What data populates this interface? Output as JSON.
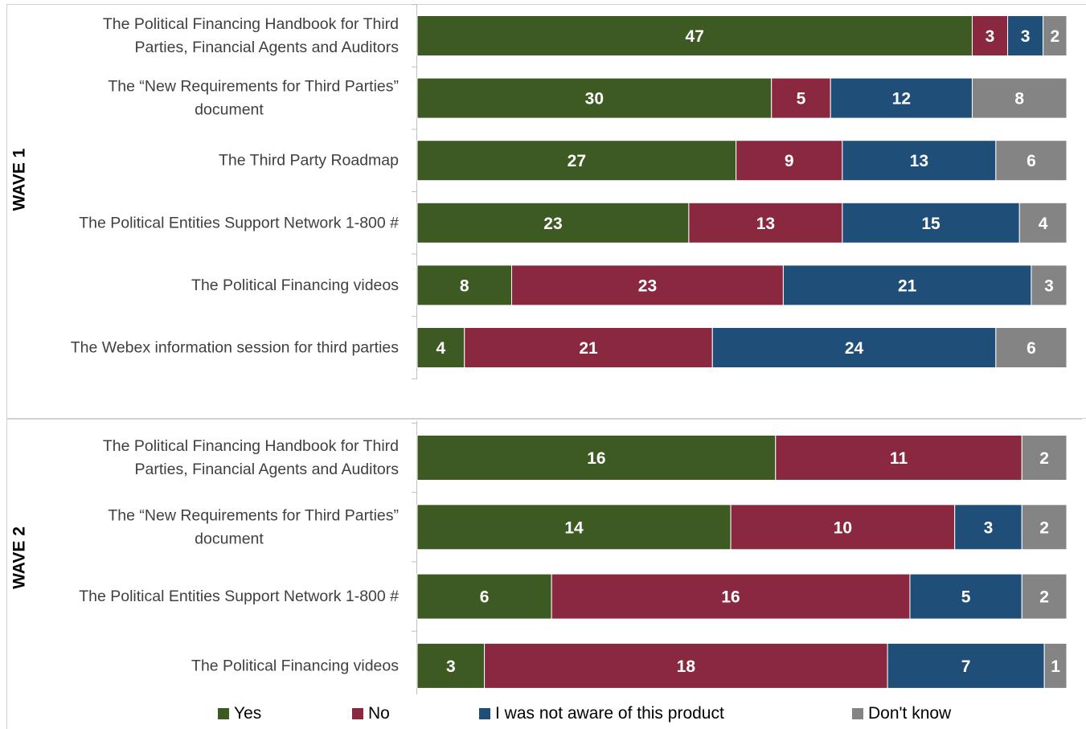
{
  "legend": [
    {
      "label": "Yes",
      "color": "#3d5a23"
    },
    {
      "label": "No",
      "color": "#8a2840"
    },
    {
      "label": "I was not aware of this product",
      "color": "#1f4e79"
    },
    {
      "label": "Don't know",
      "color": "#848484"
    }
  ],
  "chart_data": [
    {
      "type": "bar",
      "orientation": "horizontal",
      "stacked": true,
      "group_label": "WAVE 1",
      "categories": [
        [
          "The Political Financing Handbook for Third",
          "Parties, Financial Agents and Auditors"
        ],
        [
          "The “New Requirements for Third Parties”",
          "document"
        ],
        [
          "The Third Party Roadmap"
        ],
        [
          "The Political Entities Support Network 1-800 #"
        ],
        [
          "The Political Financing videos"
        ],
        [
          "The Webex information session for third parties"
        ]
      ],
      "series": [
        {
          "name": "Yes",
          "color": "#3d5a23",
          "values": [
            47,
            30,
            27,
            23,
            8,
            4
          ]
        },
        {
          "name": "No",
          "color": "#8a2840",
          "values": [
            3,
            5,
            9,
            13,
            23,
            21
          ]
        },
        {
          "name": "I was not aware of this product",
          "color": "#1f4e79",
          "values": [
            3,
            12,
            13,
            15,
            21,
            24
          ]
        },
        {
          "name": "Don't know",
          "color": "#848484",
          "values": [
            2,
            8,
            6,
            4,
            3,
            6
          ]
        }
      ]
    },
    {
      "type": "bar",
      "orientation": "horizontal",
      "stacked": true,
      "group_label": "WAVE 2",
      "categories": [
        [
          "The Political Financing Handbook for Third",
          "Parties, Financial Agents and Auditors"
        ],
        [
          "The “New Requirements for Third Parties”",
          "document"
        ],
        [
          "The Political Entities Support Network 1-800 #"
        ],
        [
          "The Political Financing videos"
        ]
      ],
      "series": [
        {
          "name": "Yes",
          "color": "#3d5a23",
          "values": [
            16,
            14,
            6,
            3
          ]
        },
        {
          "name": "No",
          "color": "#8a2840",
          "values": [
            11,
            10,
            16,
            18
          ]
        },
        {
          "name": "I was not aware of this product",
          "color": "#1f4e79",
          "values": [
            0,
            3,
            5,
            7
          ]
        },
        {
          "name": "Don't know",
          "color": "#848484",
          "values": [
            2,
            2,
            2,
            1
          ]
        }
      ]
    }
  ]
}
